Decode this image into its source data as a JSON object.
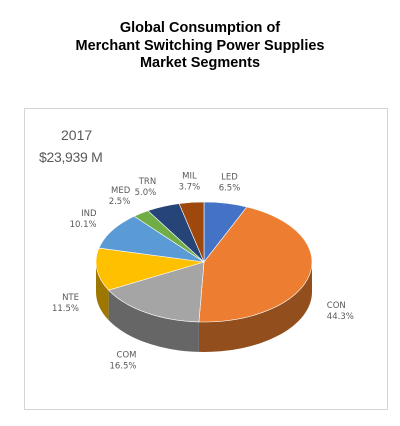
{
  "chart_data": {
    "type": "pie",
    "title_lines": [
      "Global Consumption of",
      "Merchant Switching Power Supplies",
      "Market Segments"
    ],
    "year": "2017",
    "total": "$23,939 M",
    "slices": [
      {
        "name": "LED",
        "value": 6.5,
        "label": "6.5%",
        "color": "#4472c4"
      },
      {
        "name": "CON",
        "value": 44.3,
        "label": "44.3%",
        "color": "#ed7d31"
      },
      {
        "name": "COM",
        "value": 16.5,
        "label": "16.5%",
        "color": "#a5a5a5"
      },
      {
        "name": "NTE",
        "value": 11.5,
        "label": "11.5%",
        "color": "#ffc000"
      },
      {
        "name": "IND",
        "value": 10.1,
        "label": "10.1%",
        "color": "#5b9bd5"
      },
      {
        "name": "MED",
        "value": 2.5,
        "label": "2.5%",
        "color": "#70ad47"
      },
      {
        "name": "TRN",
        "value": 5.0,
        "label": "5.0%",
        "color": "#264478"
      },
      {
        "name": "MIL",
        "value": 3.7,
        "label": "3.7%",
        "color": "#9e480e"
      }
    ]
  }
}
